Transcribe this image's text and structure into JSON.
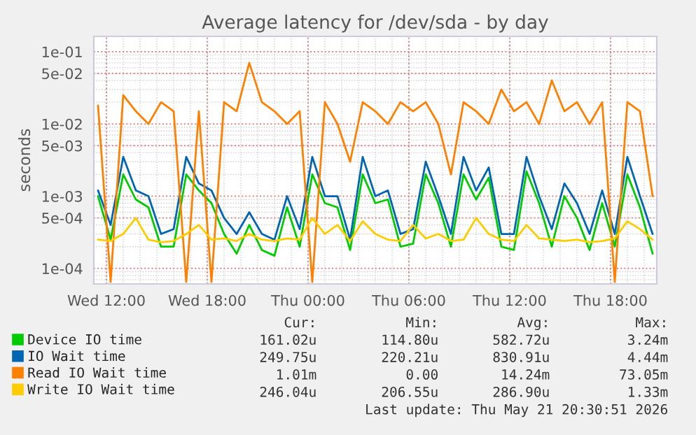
{
  "chart_data": {
    "type": "line",
    "title": "Average latency for /dev/sda - by day",
    "ylabel": "seconds",
    "log": "y",
    "grid": true,
    "legend": "bottom",
    "marker": "none",
    "line_style": "solid",
    "x": [
      "2026-05-20T11:30",
      "2026-05-20T12:15",
      "2026-05-20T13:00",
      "2026-05-20T13:45",
      "2026-05-20T14:30",
      "2026-05-20T15:15",
      "2026-05-20T16:00",
      "2026-05-20T16:45",
      "2026-05-20T17:30",
      "2026-05-20T18:15",
      "2026-05-20T19:00",
      "2026-05-20T19:45",
      "2026-05-20T20:30",
      "2026-05-20T21:15",
      "2026-05-20T22:00",
      "2026-05-20T22:45",
      "2026-05-20T23:30",
      "2026-05-21T00:15",
      "2026-05-21T01:00",
      "2026-05-21T01:45",
      "2026-05-21T02:30",
      "2026-05-21T03:15",
      "2026-05-21T04:00",
      "2026-05-21T04:45",
      "2026-05-21T05:30",
      "2026-05-21T06:15",
      "2026-05-21T07:00",
      "2026-05-21T07:45",
      "2026-05-21T08:30",
      "2026-05-21T09:15",
      "2026-05-21T10:00",
      "2026-05-21T10:45",
      "2026-05-21T11:30",
      "2026-05-21T12:15",
      "2026-05-21T13:00",
      "2026-05-21T13:45",
      "2026-05-21T14:30",
      "2026-05-21T15:15",
      "2026-05-21T16:00",
      "2026-05-21T16:45",
      "2026-05-21T17:30",
      "2026-05-21T18:15",
      "2026-05-21T19:00",
      "2026-05-21T19:45",
      "2026-05-21T20:30"
    ],
    "xlim": [
      "2026-05-20T11:15",
      "2026-05-21T20:45"
    ],
    "xticks": [
      {
        "value": "2026-05-20T12:00",
        "label": "Wed 12:00"
      },
      {
        "value": "2026-05-20T18:00",
        "label": "Wed 18:00"
      },
      {
        "value": "2026-05-21T00:00",
        "label": "Thu 00:00"
      },
      {
        "value": "2026-05-21T06:00",
        "label": "Thu 06:00"
      },
      {
        "value": "2026-05-21T12:00",
        "label": "Thu 12:00"
      },
      {
        "value": "2026-05-21T18:00",
        "label": "Thu 18:00"
      }
    ],
    "ylim": [
      6.1e-05,
      0.163
    ],
    "yticks": [
      {
        "value": 0.1,
        "label": "1e-01"
      },
      {
        "value": 0.05,
        "label": "5e-02"
      },
      {
        "value": 0.01,
        "label": "1e-02"
      },
      {
        "value": 0.005,
        "label": "5e-03"
      },
      {
        "value": 0.001,
        "label": "1e-03"
      },
      {
        "value": 0.0005,
        "label": "5e-04"
      },
      {
        "value": 0.0001,
        "label": "1e-04"
      }
    ],
    "series": [
      {
        "name": "Device IO time",
        "color": "#00cc00",
        "values": [
          0.001,
          0.00025,
          0.002,
          0.0009,
          0.0007,
          0.0002,
          0.0002,
          0.002,
          0.0012,
          0.0008,
          0.0003,
          0.00016,
          0.0004,
          0.00018,
          0.00015,
          0.0007,
          0.0002,
          0.002,
          0.0008,
          0.0007,
          0.00018,
          0.002,
          0.0008,
          0.0009,
          0.0002,
          0.00022,
          0.002,
          0.0008,
          0.0002,
          0.002,
          0.0009,
          0.0018,
          0.0002,
          0.00018,
          0.0022,
          0.0008,
          0.0002,
          0.001,
          0.0005,
          0.00018,
          0.0008,
          0.0002,
          0.002,
          0.0007,
          0.00016
        ]
      },
      {
        "name": "IO Wait time",
        "color": "#0066b3",
        "values": [
          0.0012,
          0.0004,
          0.0035,
          0.0012,
          0.001,
          0.0003,
          0.00035,
          0.0035,
          0.0015,
          0.0012,
          0.0005,
          0.0003,
          0.0006,
          0.0003,
          0.00025,
          0.001,
          0.00035,
          0.0035,
          0.001,
          0.001,
          0.00025,
          0.0035,
          0.001,
          0.0012,
          0.0003,
          0.00035,
          0.003,
          0.001,
          0.0003,
          0.0035,
          0.0012,
          0.0025,
          0.0003,
          0.0003,
          0.0035,
          0.001,
          0.00035,
          0.0015,
          0.0008,
          0.0003,
          0.0012,
          0.0003,
          0.0035,
          0.001,
          0.0003
        ]
      },
      {
        "name": "Read IO Wait time",
        "color": "#ff8000",
        "values": [
          0.018,
          6.5e-05,
          0.025,
          0.015,
          0.01,
          0.02,
          0.015,
          6.5e-05,
          0.015,
          6.5e-05,
          0.02,
          0.015,
          0.07,
          0.02,
          0.015,
          0.01,
          0.015,
          6.5e-05,
          0.02,
          0.01,
          0.003,
          0.02,
          0.015,
          0.01,
          0.02,
          0.015,
          0.02,
          0.01,
          0.002,
          0.02,
          0.015,
          0.01,
          0.03,
          0.015,
          0.02,
          0.01,
          0.04,
          0.015,
          0.02,
          0.01,
          0.02,
          6.5e-05,
          0.02,
          0.015,
          0.001
        ]
      },
      {
        "name": "Write IO Wait time",
        "color": "#ffcc00",
        "values": [
          0.00025,
          0.00024,
          0.0003,
          0.0005,
          0.00025,
          0.00023,
          0.00024,
          0.0003,
          0.0004,
          0.00025,
          0.00026,
          0.00024,
          0.0003,
          0.00025,
          0.00024,
          0.00026,
          0.00025,
          0.0005,
          0.0003,
          0.0004,
          0.00024,
          0.00045,
          0.0003,
          0.00025,
          0.00024,
          0.0004,
          0.00026,
          0.0003,
          0.00024,
          0.00025,
          0.0005,
          0.0003,
          0.00025,
          0.00024,
          0.0004,
          0.00026,
          0.00025,
          0.00024,
          0.00025,
          0.00023,
          0.00024,
          0.00026,
          0.00045,
          0.00035,
          0.00025
        ]
      }
    ],
    "annotations": [
      "Cur:",
      "Min:",
      "Avg:",
      "Max:",
      "161.02u",
      "114.80u",
      "582.72u",
      "3.24m",
      "249.75u",
      "220.21u",
      "830.91u",
      "4.44m",
      "1.01m",
      "0.00",
      "14.24m",
      "73.05m",
      "246.04u",
      "206.55u",
      "286.90u",
      "1.33m",
      "Last update: Thu May 21 20:30:51 2026"
    ]
  }
}
